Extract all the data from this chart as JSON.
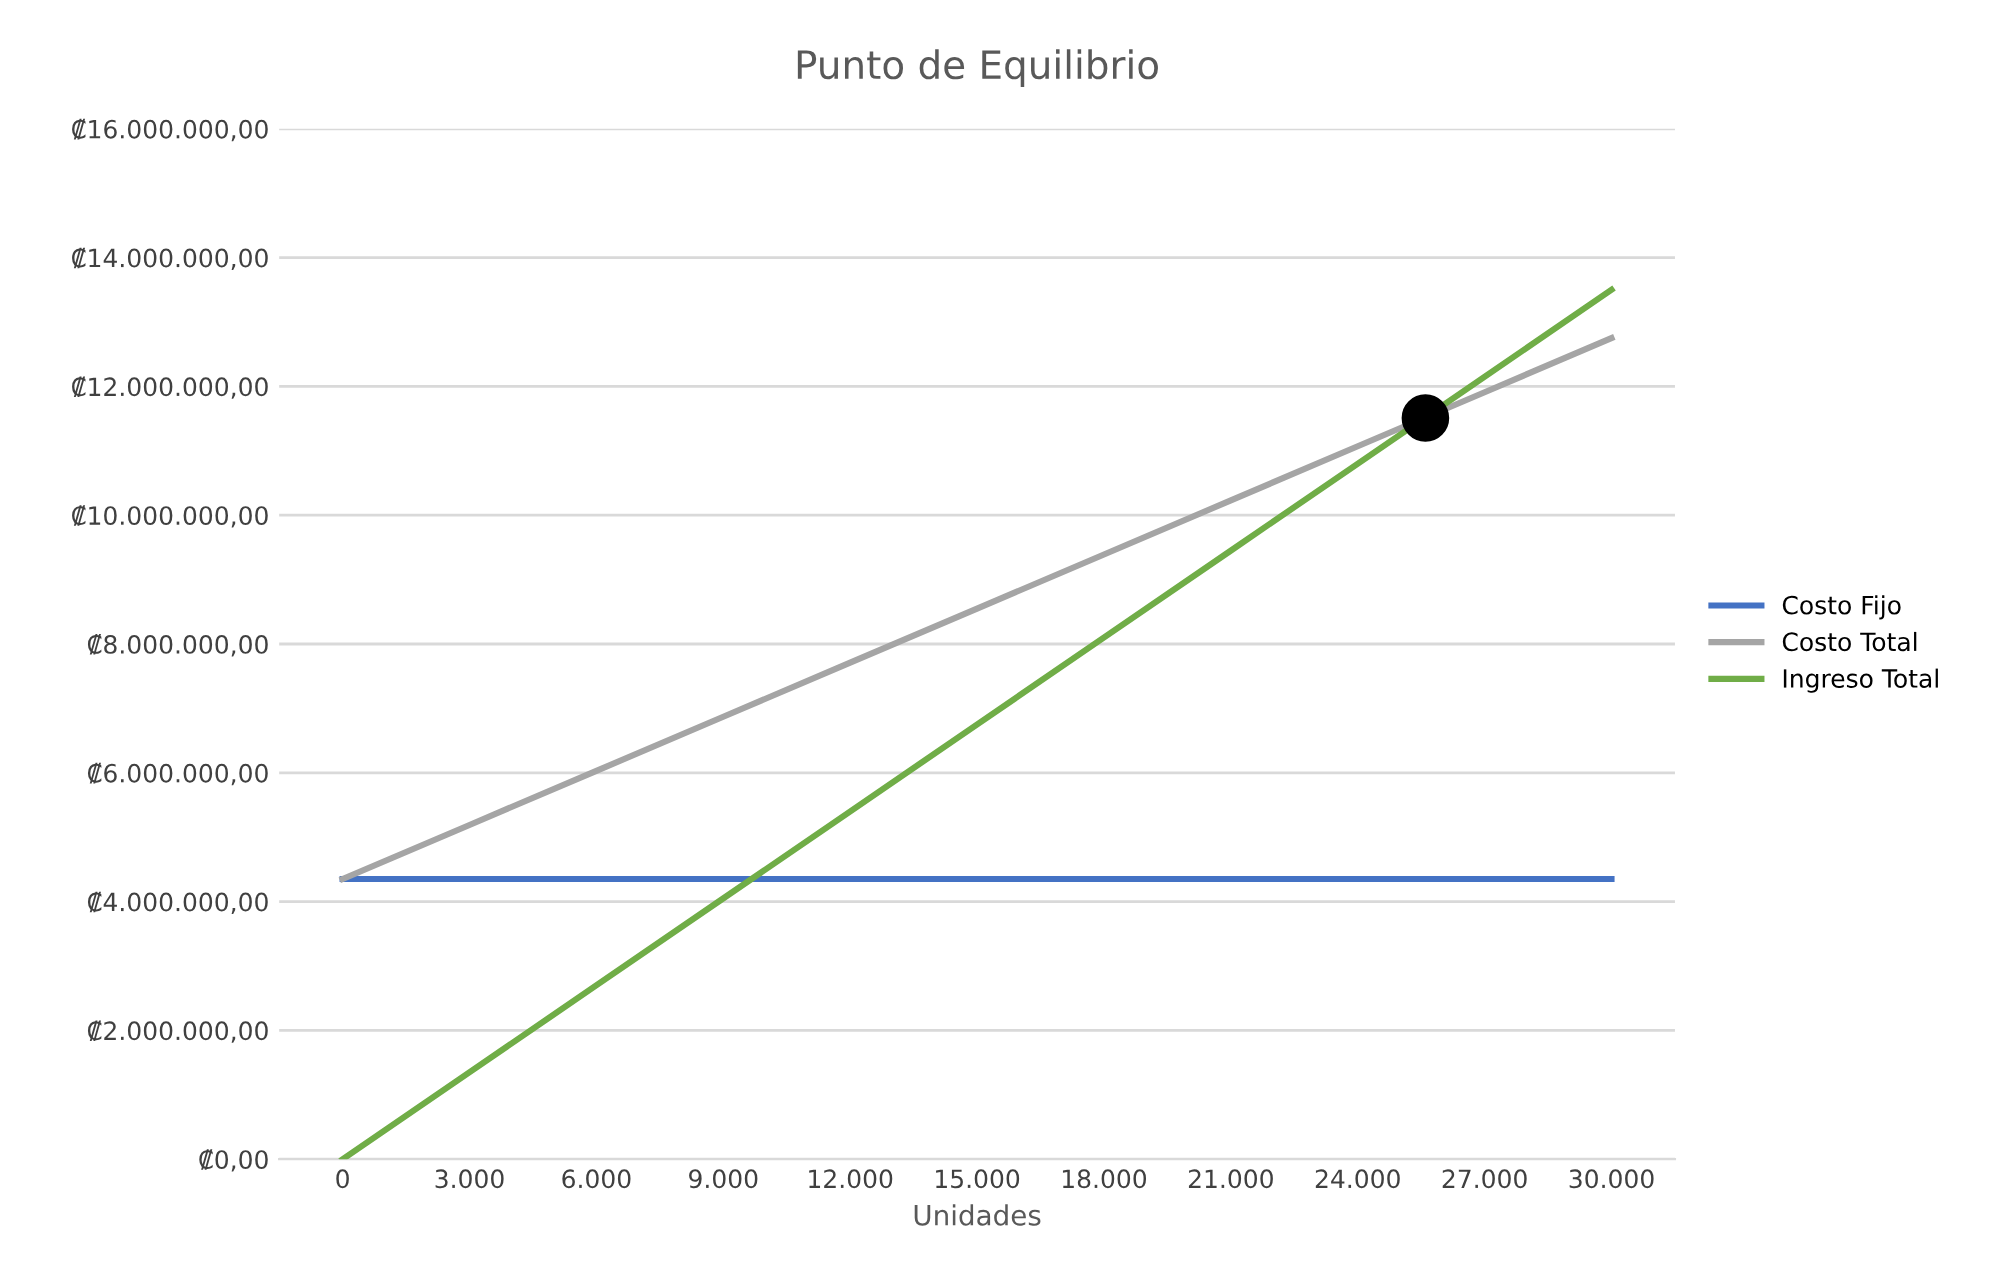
{
  "chart_data": {
    "type": "line",
    "title": "Punto de Equilibrio",
    "xlabel": "Unidades",
    "x": [
      0,
      3000,
      6000,
      9000,
      12000,
      15000,
      18000,
      21000,
      24000,
      27000,
      30000
    ],
    "series": [
      {
        "name": "Costo Fijo",
        "color": "#4472c4",
        "values": [
          4350000,
          4350000,
          4350000,
          4350000,
          4350000,
          4350000,
          4350000,
          4350000,
          4350000,
          4350000,
          4350000
        ]
      },
      {
        "name": "Costo Total",
        "color": "#a5a5a5",
        "values": [
          4350000,
          5190000,
          6030000,
          6870000,
          7710000,
          8550000,
          9390000,
          10230000,
          11070000,
          11910000,
          12750000
        ]
      },
      {
        "name": "Ingreso Total",
        "color": "#70ad47",
        "values": [
          0,
          1350000,
          2700000,
          4050000,
          5400000,
          6750000,
          8100000,
          9450000,
          10800000,
          12150000,
          13500000
        ]
      },
      {
        "type": "scatter",
        "color": "#000000",
        "marker": "circle",
        "x": [
          25600
        ],
        "values": [
          11510000
        ]
      }
    ],
    "xlim": [
      -1500,
      31500
    ],
    "xticks": [
      0,
      {
        "value": 3000,
        "label": "3.000"
      },
      {
        "value": 6000,
        "label": "6.000"
      },
      {
        "value": 9000,
        "label": "9.000"
      },
      {
        "value": 12000,
        "label": "12.000"
      },
      {
        "value": 15000,
        "label": "15.000"
      },
      {
        "value": 18000,
        "label": "18.000"
      },
      {
        "value": 21000,
        "label": "21.000"
      },
      {
        "value": 24000,
        "label": "24.000"
      },
      {
        "value": 27000,
        "label": "27.000"
      },
      {
        "value": 30000,
        "label": "30.000"
      }
    ],
    "ylim": [
      0,
      16000000
    ],
    "yticks": [
      {
        "value": 0,
        "label": "₡0,00"
      },
      {
        "value": 2000000,
        "label": "₡2.000.000,00"
      },
      {
        "value": 4000000,
        "label": "₡4.000.000,00"
      },
      {
        "value": 6000000,
        "label": "₡6.000.000,00"
      },
      {
        "value": 8000000,
        "label": "₡8.000.000,00"
      },
      {
        "value": 10000000,
        "label": "₡10.000.000,00"
      },
      {
        "value": 12000000,
        "label": "₡12.000.000,00"
      },
      {
        "value": 14000000,
        "label": "₡14.000.000,00"
      },
      {
        "value": 16000000,
        "label": "₡16.000.000,00"
      }
    ],
    "grid": "y",
    "legend": "right",
    "marker": "none",
    "line_style": "solid"
  }
}
